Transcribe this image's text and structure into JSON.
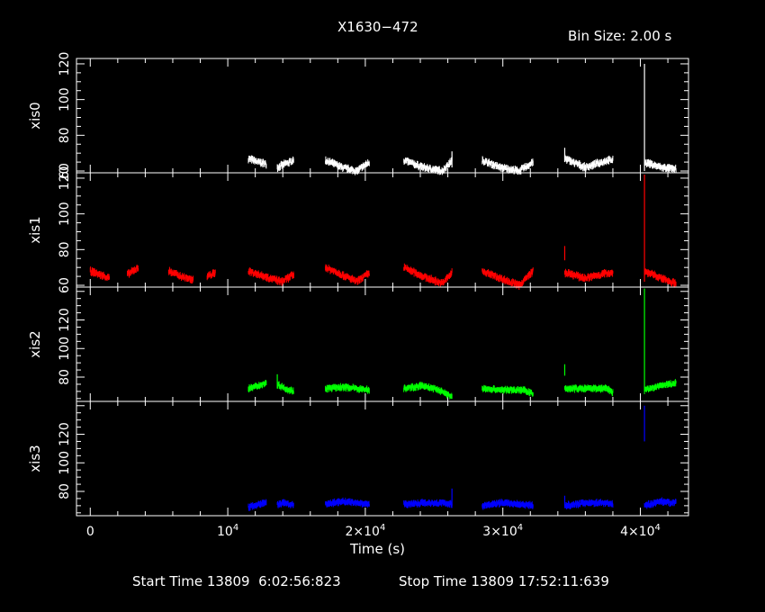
{
  "header": {
    "title": "X1630−472",
    "bin_size": "Bin Size: 2.00 s"
  },
  "footer": {
    "start_label": "Start Time 13809  6:02:56:823",
    "stop_label": "Stop Time 13809 17:52:11:639"
  },
  "chart_data": {
    "type": "scatter",
    "title": "X1630−472",
    "xlabel": "Time (s)",
    "xlim": [
      -1000,
      43500
    ],
    "x_ticks": [
      {
        "value": 0,
        "label": "0"
      },
      {
        "value": 10000,
        "label": "10^4"
      },
      {
        "value": 20000,
        "label": "2×10^4"
      },
      {
        "value": 30000,
        "label": "3×10^4"
      },
      {
        "value": 40000,
        "label": "4×10^4"
      }
    ],
    "panels": [
      {
        "name": "xis0",
        "color": "#ffffff",
        "ylim": [
          59,
          123
        ],
        "yticks": [
          {
            "v": 60,
            "l": "60"
          },
          {
            "v": 80,
            "l": "80"
          },
          {
            "v": 100,
            "l": "100"
          },
          {
            "v": 120,
            "l": "120"
          }
        ],
        "segments": [
          {
            "x": [
              11500,
              12200,
              12800
            ],
            "y": [
              67,
              65,
              64
            ]
          },
          {
            "x": [
              13600,
              14200,
              14800
            ],
            "y": [
              62,
              64,
              66
            ]
          },
          {
            "x": [
              17100,
              18300,
              19400,
              20300
            ],
            "y": [
              66,
              62,
              60,
              65
            ]
          },
          {
            "x": [
              22800,
              24200,
              25600,
              26300
            ],
            "y": [
              66,
              62,
              60,
              66
            ]
          },
          {
            "x": [
              28500,
              29800,
              31200,
              32200
            ],
            "y": [
              66,
              62,
              60,
              65
            ]
          },
          {
            "x": [
              34500,
              36000,
              37600,
              38000
            ],
            "y": [
              67,
              62,
              66,
              66
            ]
          },
          {
            "x": [
              40300,
              41500,
              42600
            ],
            "y": [
              65,
              62,
              61
            ]
          }
        ],
        "spikes": [
          {
            "x": 40300,
            "y0": 60,
            "y1": 120
          },
          {
            "x": 34500,
            "y0": 65,
            "y1": 73
          },
          {
            "x": 26300,
            "y0": 62,
            "y1": 71
          }
        ]
      },
      {
        "name": "xis1",
        "color": "#ff0000",
        "ylim": [
          59,
          123
        ],
        "yticks": [
          {
            "v": 60,
            "l": "60"
          },
          {
            "v": 80,
            "l": "80"
          },
          {
            "v": 100,
            "l": "100"
          },
          {
            "v": 120,
            "l": "120"
          }
        ],
        "segments": [
          {
            "x": [
              0,
              700,
              1400
            ],
            "y": [
              68,
              66,
              64
            ]
          },
          {
            "x": [
              2700,
              3500
            ],
            "y": [
              66,
              70
            ]
          },
          {
            "x": [
              5700,
              6600,
              7500
            ],
            "y": [
              68,
              65,
              63
            ]
          },
          {
            "x": [
              8500,
              9100
            ],
            "y": [
              65,
              67
            ]
          },
          {
            "x": [
              11500,
              12700,
              13900,
              14800
            ],
            "y": [
              68,
              65,
              62,
              66
            ]
          },
          {
            "x": [
              17100,
              18300,
              19400,
              20300
            ],
            "y": [
              70,
              66,
              62,
              67
            ]
          },
          {
            "x": [
              22800,
              24200,
              25600,
              26300
            ],
            "y": [
              70,
              65,
              61,
              67
            ]
          },
          {
            "x": [
              28500,
              29800,
              31200,
              32200
            ],
            "y": [
              68,
              64,
              60,
              68
            ]
          },
          {
            "x": [
              34500,
              36000,
              37600,
              38000
            ],
            "y": [
              67,
              64,
              67,
              67
            ]
          },
          {
            "x": [
              40300,
              41500,
              42600
            ],
            "y": [
              68,
              64,
              61
            ]
          }
        ],
        "spikes": [
          {
            "x": 40300,
            "y0": 62,
            "y1": 122
          },
          {
            "x": 34500,
            "y0": 74,
            "y1": 82
          }
        ]
      },
      {
        "name": "xis2",
        "color": "#00ff00",
        "ylim": [
          63,
          143
        ],
        "yticks": [
          {
            "v": 80,
            "l": "80"
          },
          {
            "v": 100,
            "l": "100"
          },
          {
            "v": 120,
            "l": "120"
          }
        ],
        "segments": [
          {
            "x": [
              11500,
              12200,
              12800
            ],
            "y": [
              72,
              74,
              76
            ]
          },
          {
            "x": [
              13600,
              14200,
              14800
            ],
            "y": [
              75,
              72,
              70
            ]
          },
          {
            "x": [
              17100,
              18500,
              20300
            ],
            "y": [
              72,
              73,
              71
            ]
          },
          {
            "x": [
              22800,
              24200,
              25600,
              26300
            ],
            "y": [
              72,
              74,
              70,
              66
            ]
          },
          {
            "x": [
              28500,
              30000,
              31500,
              32200
            ],
            "y": [
              72,
              71,
              71,
              68
            ]
          },
          {
            "x": [
              34500,
              36000,
              37600,
              38000
            ],
            "y": [
              72,
              72,
              72,
              69
            ]
          },
          {
            "x": [
              40300,
              41500,
              42600
            ],
            "y": [
              71,
              74,
              76
            ]
          }
        ],
        "spikes": [
          {
            "x": 40300,
            "y0": 70,
            "y1": 142
          },
          {
            "x": 34500,
            "y0": 81,
            "y1": 89
          },
          {
            "x": 13600,
            "y0": 72,
            "y1": 82
          }
        ]
      },
      {
        "name": "xis3",
        "color": "#0000ff",
        "ylim": [
          63,
          143
        ],
        "yticks": [
          {
            "v": 80,
            "l": "80"
          },
          {
            "v": 100,
            "l": "100"
          },
          {
            "v": 120,
            "l": "120"
          }
        ],
        "segments": [
          {
            "x": [
              11500,
              12200,
              12800
            ],
            "y": [
              69,
              71,
              72
            ]
          },
          {
            "x": [
              13600,
              14200,
              14800
            ],
            "y": [
              71,
              72,
              70
            ]
          },
          {
            "x": [
              17100,
              18300,
              19400,
              20300
            ],
            "y": [
              71,
              73,
              72,
              71
            ]
          },
          {
            "x": [
              22800,
              24200,
              25600,
              26300
            ],
            "y": [
              71,
              72,
              72,
              71
            ]
          },
          {
            "x": [
              28500,
              30000,
              31500,
              32200
            ],
            "y": [
              70,
              72,
              71,
              70
            ]
          },
          {
            "x": [
              34500,
              36000,
              37600,
              38000
            ],
            "y": [
              70,
              72,
              72,
              71
            ]
          },
          {
            "x": [
              40300,
              41500,
              42600
            ],
            "y": [
              70,
              73,
              72
            ]
          }
        ],
        "spikes": [
          {
            "x": 40300,
            "y0": 115,
            "y1": 140
          },
          {
            "x": 26300,
            "y0": 70,
            "y1": 82
          },
          {
            "x": 34500,
            "y0": 70,
            "y1": 77
          }
        ]
      }
    ]
  }
}
